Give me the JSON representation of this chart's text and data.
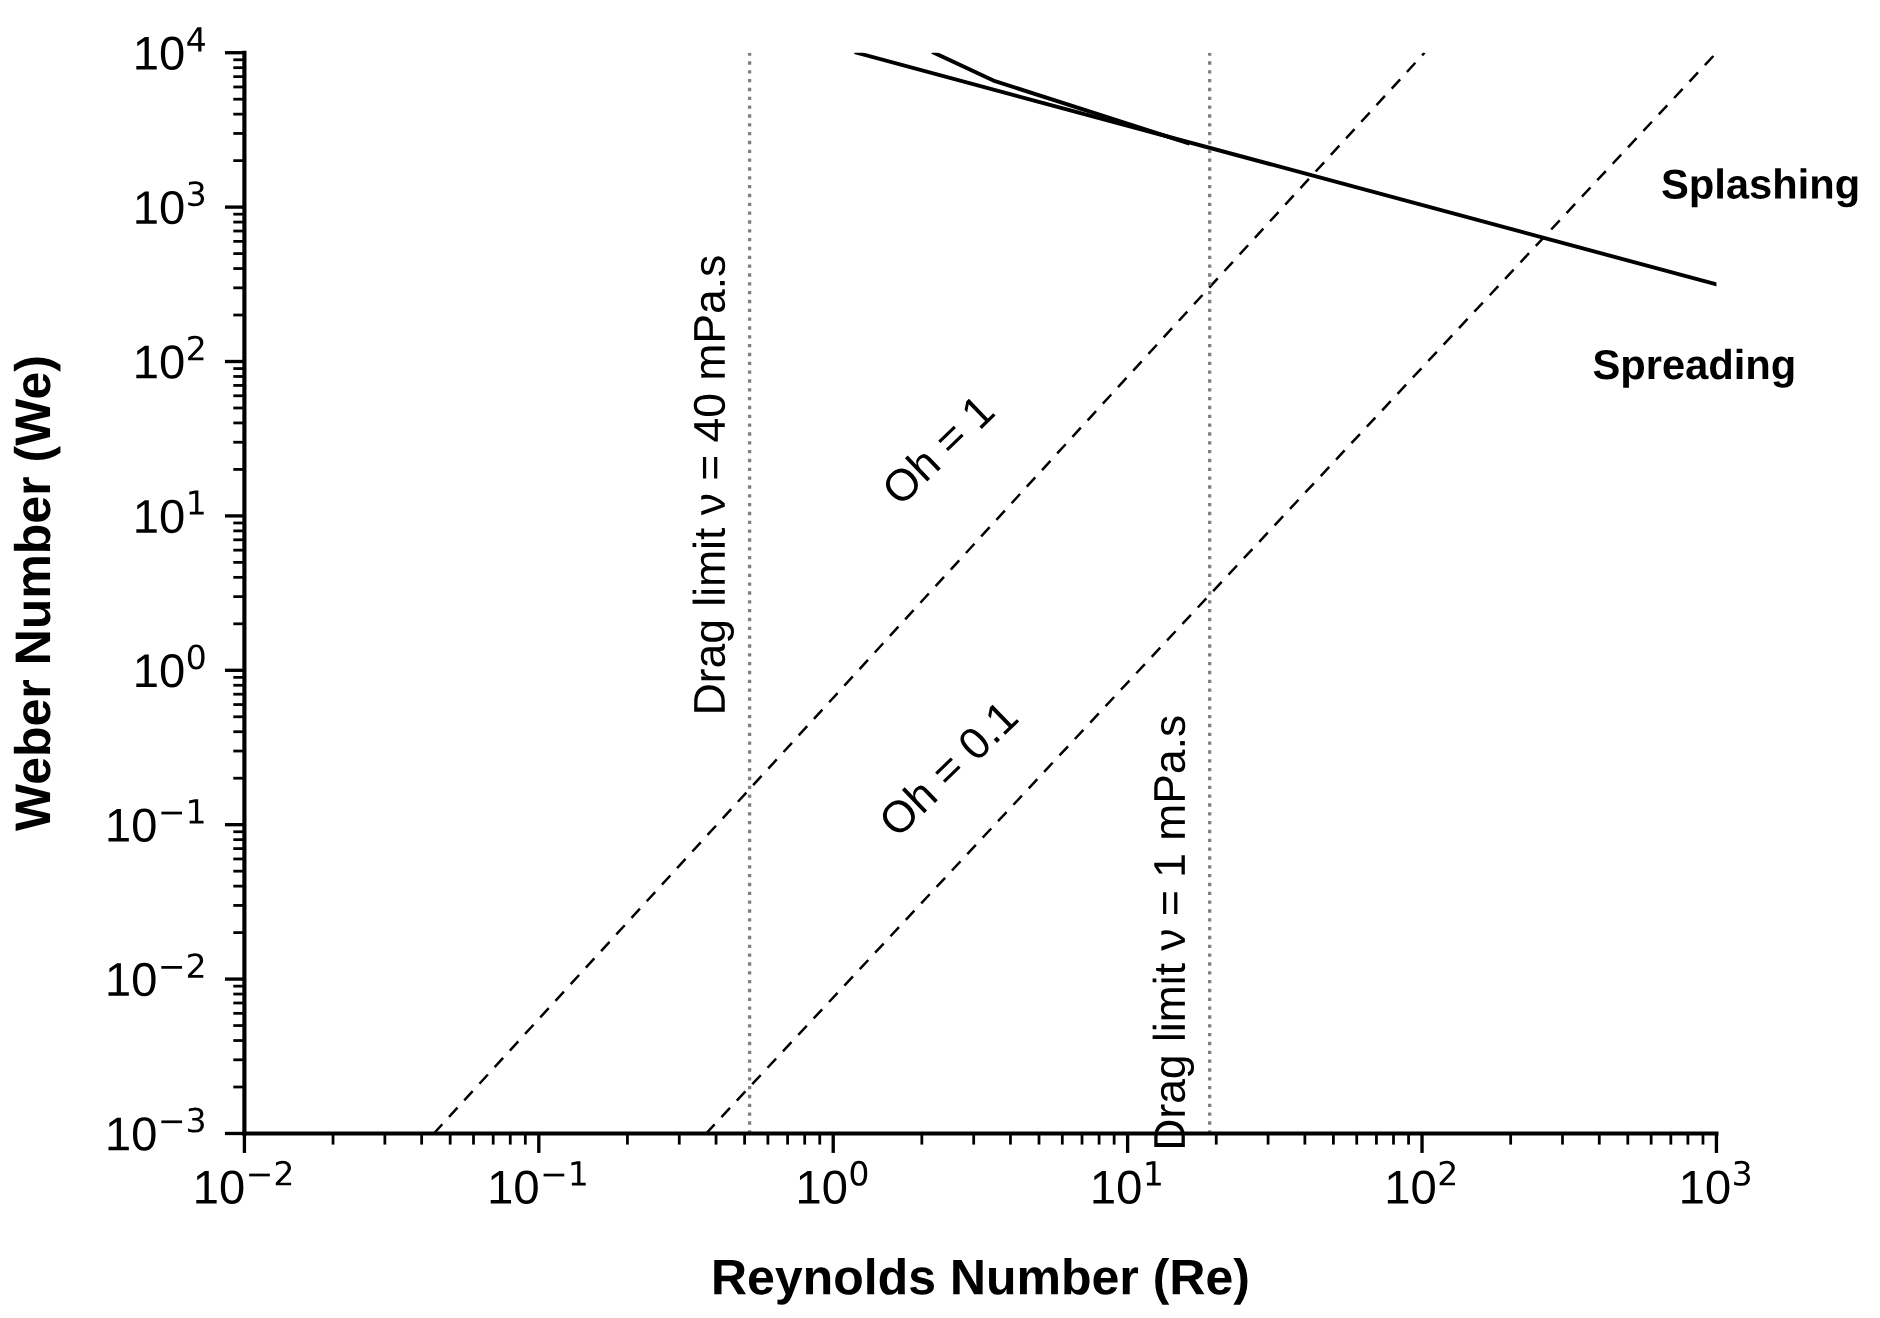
{
  "chart_data": {
    "type": "line",
    "xlabel": "Reynolds Number (Re)",
    "ylabel": "Weber Number (We)",
    "log": "xy",
    "grid": false,
    "legend": false,
    "xlim": [
      0.01,
      1000
    ],
    "ylim": [
      0.001,
      10000
    ],
    "xticks": [
      {
        "value": 0.01,
        "label": "10$^{−2}$"
      },
      {
        "value": 0.1,
        "label": "10$^{−1}$"
      },
      {
        "value": 1,
        "label": "10$^{0}$"
      },
      {
        "value": 10,
        "label": "10$^{1}$"
      },
      {
        "value": 100,
        "label": "10$^{2}$"
      },
      {
        "value": 1000,
        "label": "10$^{3}$"
      }
    ],
    "yticks": [
      {
        "value": 0.001,
        "label": "10$^{−3}$"
      },
      {
        "value": 0.01,
        "label": "10$^{−2}$"
      },
      {
        "value": 0.1,
        "label": "10$^{−1}$"
      },
      {
        "value": 1,
        "label": "10$^{0}$"
      },
      {
        "value": 10,
        "label": "10$^{1}$"
      },
      {
        "value": 100,
        "label": "10$^{2}$"
      },
      {
        "value": 1000,
        "label": "10$^{3}$"
      },
      {
        "value": 10000,
        "label": "10$^{4}$"
      }
    ],
    "series": [
      {
        "color": "#000000",
        "line_style": "solid",
        "x": [
          1.2,
          1000
        ],
        "values": [
          10000,
          316
        ]
      },
      {
        "color": "#000000",
        "line_style": "solid",
        "x": [
          2.2,
          3.5,
          16
        ],
        "values": [
          10000,
          6600,
          2600
        ]
      },
      {
        "color": "#000000",
        "line_style": "dashed",
        "x": [
          0.044,
          102
        ],
        "values": [
          0.001,
          10000
        ]
      },
      {
        "color": "#000000",
        "line_style": "dashed",
        "x": [
          0.37,
          1000
        ],
        "values": [
          0.001,
          10000
        ]
      },
      {
        "name": "Drag limit ν = 40 mPa.s",
        "color": "#808080",
        "line_style": "dotted",
        "x": [
          0.52,
          0.52
        ],
        "values": [
          0.001,
          10000
        ]
      },
      {
        "name": "Drag limit ν = 1 mPa.s",
        "color": "#808080",
        "line_style": "dotted",
        "x": [
          19,
          19
        ],
        "values": [
          0.001,
          10000
        ]
      }
    ],
    "annotations": [
      "Oh = 1",
      "Oh = 0.1",
      "Splashing",
      "Spreading"
    ]
  }
}
